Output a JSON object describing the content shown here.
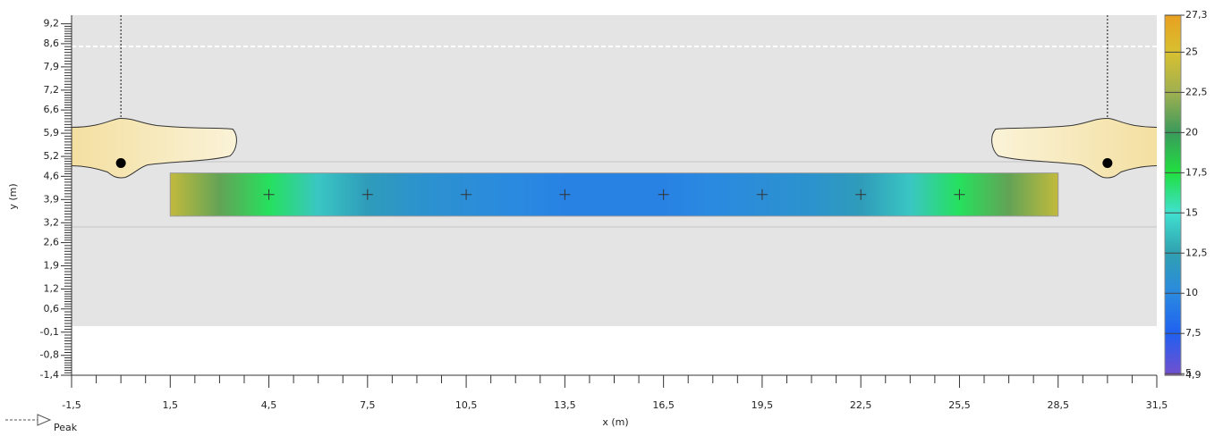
{
  "chart_data": {
    "type": "contour",
    "x_label": "x (m)",
    "y_label": "y (m)",
    "xlim": [
      -1.5,
      31.5
    ],
    "xticks": [
      {
        "value": -1.5,
        "label": "-1,5"
      },
      {
        "value": 1.5,
        "label": "1,5"
      },
      {
        "value": 4.5,
        "label": "4,5"
      },
      {
        "value": 7.5,
        "label": "7,5"
      },
      {
        "value": 10.5,
        "label": "10,5"
      },
      {
        "value": 13.5,
        "label": "13,5"
      },
      {
        "value": 16.5,
        "label": "16,5"
      },
      {
        "value": 19.5,
        "label": "19,5"
      },
      {
        "value": 22.5,
        "label": "22,5"
      },
      {
        "value": 25.5,
        "label": "25,5"
      },
      {
        "value": 28.5,
        "label": "28,5"
      },
      {
        "value": 31.5,
        "label": "31,5"
      }
    ],
    "ylim": [
      -1.4,
      9.46
    ],
    "yticks": [
      {
        "value": 9.2,
        "label": "9,2"
      },
      {
        "value": 8.6,
        "label": "8,6"
      },
      {
        "value": 7.9,
        "label": "7,9"
      },
      {
        "value": 7.2,
        "label": "7,2"
      },
      {
        "value": 6.6,
        "label": "6,6"
      },
      {
        "value": 5.9,
        "label": "5,9"
      },
      {
        "value": 5.2,
        "label": "5,2"
      },
      {
        "value": 4.6,
        "label": "4,6"
      },
      {
        "value": 3.9,
        "label": "3,9"
      },
      {
        "value": 3.2,
        "label": "3,2"
      },
      {
        "value": 2.6,
        "label": "2,6"
      },
      {
        "value": 1.9,
        "label": "1,9"
      },
      {
        "value": 1.2,
        "label": "1,2"
      },
      {
        "value": 0.6,
        "label": "0,6"
      },
      {
        "value": -0.1,
        "label": "-0,1"
      },
      {
        "value": -0.8,
        "label": "-0,8"
      },
      {
        "value": -1.4,
        "label": "-1,4"
      }
    ],
    "field": {
      "x": [
        1.5,
        3,
        4.5,
        6,
        7.5,
        9,
        10.5,
        12,
        13.5,
        15,
        16.5,
        18,
        19.5,
        21,
        22.5,
        24,
        25.5,
        27,
        28.5
      ],
      "values": [
        24,
        21,
        17,
        14,
        12,
        11,
        10.5,
        10,
        9.5,
        9.5,
        9.5,
        10,
        10.5,
        11,
        12,
        14,
        17,
        21,
        24
      ],
      "y": [
        3.4,
        4.7
      ]
    },
    "grid_points": {
      "x": [
        4.5,
        7.5,
        10.5,
        13.5,
        16.5,
        19.5,
        22.5,
        25.5
      ],
      "y": [
        4.05,
        4.05,
        4.05,
        4.05,
        4.05,
        4.05,
        4.05,
        4.05
      ]
    },
    "luminaires": {
      "x": [
        0,
        30
      ],
      "y": [
        5.0,
        5.0
      ]
    },
    "colorbar": {
      "lim": [
        4.9,
        27.3
      ],
      "ticks": [
        {
          "value": 27.3,
          "label": "27,3"
        },
        25,
        {
          "value": 22.5,
          "label": "22,5"
        },
        20,
        {
          "value": 17.5,
          "label": "17,5"
        },
        15,
        {
          "value": 12.5,
          "label": "12,5"
        },
        10,
        {
          "value": 7.5,
          "label": "7,5"
        },
        5,
        {
          "value": 4.9,
          "label": "4,9"
        }
      ],
      "colormap": {
        "values": [
          4.9,
          5,
          7.5,
          10,
          12.5,
          15,
          17.5,
          20,
          22.5,
          25,
          27.3
        ],
        "colors": [
          "#f7a8d8",
          "#7050d0",
          "#2060f0",
          "#2a8ae0",
          "#30a0b0",
          "#40e0d0",
          "#20e040",
          "#3a9a5a",
          "#a0b050",
          "#d8c030",
          "#e8a020"
        ]
      }
    },
    "legend": {
      "label": "Peak"
    }
  }
}
